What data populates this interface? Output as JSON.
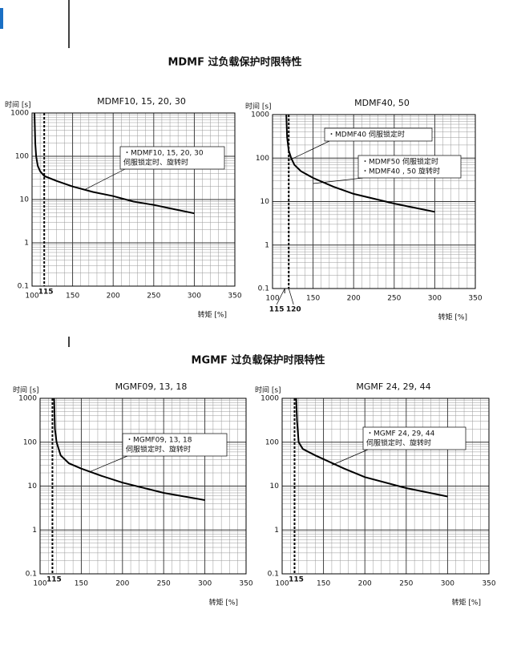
{
  "sections": [
    "MDMF  过负载保护时限特性",
    "MGMF  过负载保护时限特性"
  ],
  "chart_data": [
    {
      "type": "line",
      "title": "MDMF10, 15, 20, 30",
      "y_label": "时间 [s]",
      "x_label": "转矩  [%]",
      "log_y": true,
      "grid": true,
      "xlim": [
        100,
        350
      ],
      "xticks": [
        100,
        150,
        200,
        250,
        300,
        350
      ],
      "ylim": [
        0.1,
        1000
      ],
      "yticks": [
        0.1,
        1,
        10,
        100,
        1000
      ],
      "markers": [
        115
      ],
      "series": [
        {
          "color": "#000000",
          "x": [
            103,
            104,
            105,
            107,
            110,
            115,
            130,
            150,
            175,
            200,
            225,
            250,
            275,
            300
          ],
          "values": [
            1000,
            200,
            100,
            60,
            45,
            35,
            27,
            20,
            15,
            12,
            9,
            7.5,
            6,
            4.8
          ]
        }
      ],
      "annotations": [
        [
          "・MDMF10, 15, 20, 30",
          "伺服锁定时、旋转时"
        ]
      ]
    },
    {
      "type": "line",
      "title": "MDMF40, 50",
      "y_label": "时间 [s]",
      "x_label": "转矩  [%]",
      "log_y": true,
      "grid": true,
      "xlim": [
        100,
        350
      ],
      "xticks": [
        100,
        150,
        200,
        250,
        300,
        350
      ],
      "ylim": [
        0.1,
        1000
      ],
      "yticks": [
        0.1,
        1,
        10,
        100,
        1000
      ],
      "markers": [
        115,
        120
      ],
      "series": [
        {
          "color": "#000000",
          "x": [
            117,
            118,
            120,
            123,
            127,
            135,
            150,
            175,
            200,
            250,
            300
          ],
          "values": [
            1000,
            300,
            150,
            100,
            70,
            50,
            35,
            22,
            15,
            9,
            5.8
          ]
        }
      ],
      "annotations": [
        [
          "・MDMF40  伺服锁定时"
        ],
        [
          "・MDMF50  伺服锁定时",
          "・MDMF40 , 50   旋转时"
        ]
      ]
    },
    {
      "type": "line",
      "title": "MGMF09, 13, 18",
      "y_label": "时间 [s]",
      "x_label": "转矩  [%]",
      "log_y": true,
      "grid": true,
      "xlim": [
        100,
        350
      ],
      "xticks": [
        100,
        150,
        200,
        250,
        300,
        350
      ],
      "ylim": [
        0.1,
        1000
      ],
      "yticks": [
        0.1,
        1,
        10,
        100,
        1000
      ],
      "markers": [
        115
      ],
      "series": [
        {
          "color": "#000000",
          "x": [
            117,
            118,
            120,
            125,
            135,
            150,
            175,
            200,
            250,
            300
          ],
          "values": [
            1000,
            200,
            100,
            50,
            33,
            25,
            17,
            12,
            7,
            4.8
          ]
        }
      ],
      "annotations": [
        [
          "・MGMF09, 13, 18",
          "伺服锁定时、旋转时"
        ]
      ]
    },
    {
      "type": "line",
      "title": "MGMF 24, 29, 44",
      "y_label": "时间 [s]",
      "x_label": "转矩  [%]",
      "log_y": true,
      "grid": true,
      "xlim": [
        100,
        350
      ],
      "xticks": [
        100,
        150,
        200,
        250,
        300,
        350
      ],
      "ylim": [
        0.1,
        1000
      ],
      "yticks": [
        0.1,
        1,
        10,
        100,
        1000
      ],
      "markers": [
        115
      ],
      "series": [
        {
          "color": "#000000",
          "x": [
            117,
            118,
            120,
            125,
            140,
            175,
            200,
            250,
            300
          ],
          "values": [
            1000,
            300,
            100,
            70,
            50,
            25,
            16,
            9,
            5.8
          ]
        }
      ],
      "annotations": [
        [
          "・MGMF 24, 29, 44",
          "伺服锁定时、旋转时"
        ]
      ]
    }
  ]
}
